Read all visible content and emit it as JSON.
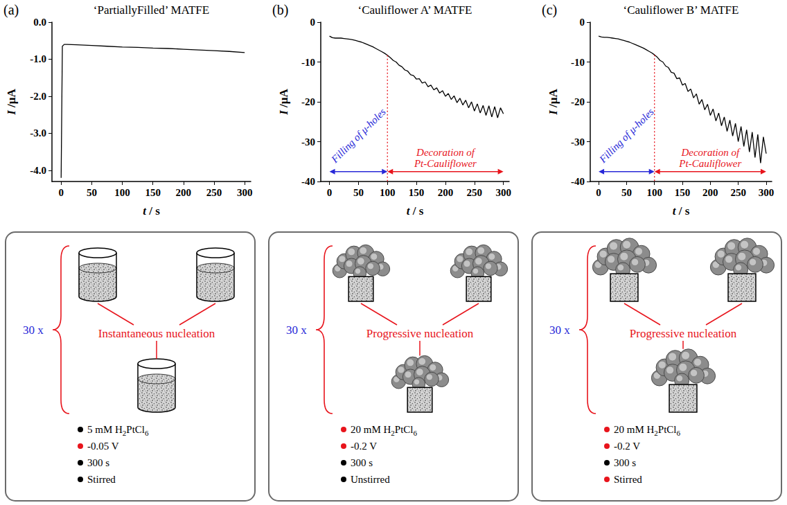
{
  "chart_data": [
    {
      "type": "line",
      "panel": "(a)",
      "title": "‘PartiallyFilled’ MATFE",
      "xlabel": "t / s",
      "ylabel": "I /μA",
      "color": "#000000",
      "grid": false,
      "x": [
        0,
        2,
        5,
        10,
        25,
        50,
        75,
        100,
        125,
        150,
        175,
        200,
        225,
        250,
        275,
        300
      ],
      "values": [
        -4.2,
        -0.65,
        -0.6,
        -0.6,
        -0.61,
        -0.63,
        -0.65,
        -0.67,
        -0.68,
        -0.7,
        -0.71,
        -0.73,
        -0.75,
        -0.77,
        -0.79,
        -0.82
      ],
      "xlim": [
        -15,
        310
      ],
      "xticks": [
        0,
        50,
        100,
        150,
        200,
        250,
        300
      ],
      "ylim": [
        -4.3,
        0
      ],
      "yticks": [
        {
          "value": 0,
          "label": "0.0"
        },
        {
          "value": -1,
          "label": "-1.0"
        },
        {
          "value": -2,
          "label": "-2.0"
        },
        {
          "value": -3,
          "label": "-3.0"
        },
        {
          "value": -4,
          "label": "-4.0"
        }
      ]
    },
    {
      "type": "line",
      "panel": "(b)",
      "title": "‘Cauliflower A’ MATFE",
      "xlabel": "t / s",
      "ylabel": "I /μA",
      "color": "#000000",
      "grid": false,
      "x": [
        0,
        5,
        10,
        15,
        20,
        25,
        30,
        35,
        40,
        45,
        50,
        55,
        60,
        65,
        70,
        75,
        80,
        85,
        90,
        95,
        100,
        105,
        110,
        115,
        120,
        125,
        130,
        135,
        140,
        145,
        150,
        155,
        160,
        165,
        170,
        175,
        180,
        185,
        190,
        195,
        200,
        205,
        210,
        215,
        220,
        225,
        230,
        235,
        240,
        245,
        250,
        255,
        260,
        265,
        270,
        275,
        280,
        285,
        290,
        295,
        300
      ],
      "values": [
        -3.5,
        -3.9,
        -4.0,
        -4.0,
        -4.0,
        -4.1,
        -4.2,
        -4.3,
        -4.4,
        -4.6,
        -4.8,
        -5.0,
        -5.3,
        -5.6,
        -5.9,
        -6.2,
        -6.6,
        -7.0,
        -7.4,
        -7.8,
        -8.3,
        -8.9,
        -9.6,
        -10.0,
        -10.8,
        -11.2,
        -12.0,
        -12.3,
        -13.2,
        -13.4,
        -14.3,
        -14.2,
        -15.3,
        -15.0,
        -16.2,
        -15.8,
        -17.0,
        -16.5,
        -17.8,
        -17.2,
        -18.6,
        -17.9,
        -19.4,
        -18.5,
        -20.2,
        -19.1,
        -20.8,
        -19.6,
        -21.5,
        -20.0,
        -22.3,
        -20.5,
        -22.8,
        -20.9,
        -23.4,
        -21.0,
        -23.8,
        -21.2,
        -24.0,
        -21.5,
        -23.0
      ],
      "xlim": [
        -15,
        310
      ],
      "xticks": [
        0,
        50,
        100,
        150,
        200,
        250,
        300
      ],
      "ylim": [
        -40,
        0
      ],
      "yticks": [
        0,
        -10,
        -20,
        -30,
        -40
      ],
      "annotations": [
        {
          "text": "Filling of μ-holes",
          "start": 0,
          "end": 100,
          "y": -37.5,
          "color": "#2828d8"
        },
        {
          "text": "Decoration of Pt-Cauliflower",
          "start": 100,
          "end": 300,
          "y": -37.5,
          "color": "#e8141c"
        }
      ]
    },
    {
      "type": "line",
      "panel": "(c)",
      "title": "‘Cauliflower B’ MATFE",
      "xlabel": "t / s",
      "ylabel": "I /μA",
      "color": "#000000",
      "grid": false,
      "x": [
        0,
        5,
        10,
        15,
        20,
        25,
        30,
        35,
        40,
        45,
        50,
        55,
        60,
        65,
        70,
        75,
        80,
        85,
        90,
        95,
        100,
        105,
        110,
        115,
        120,
        125,
        130,
        135,
        140,
        145,
        150,
        155,
        160,
        165,
        170,
        175,
        180,
        185,
        190,
        195,
        200,
        205,
        210,
        215,
        220,
        225,
        230,
        235,
        240,
        245,
        250,
        255,
        260,
        265,
        270,
        275,
        280,
        285,
        290,
        295,
        300
      ],
      "values": [
        -3.5,
        -3.7,
        -3.8,
        -3.8,
        -3.9,
        -4.0,
        -4.1,
        -4.2,
        -4.4,
        -4.6,
        -4.8,
        -5.0,
        -5.3,
        -5.6,
        -5.9,
        -6.2,
        -6.5,
        -6.9,
        -7.3,
        -7.7,
        -8.2,
        -8.8,
        -9.6,
        -10.0,
        -11.0,
        -11.4,
        -12.6,
        -12.8,
        -14.2,
        -14.0,
        -15.8,
        -15.4,
        -17.4,
        -16.8,
        -19.0,
        -18.0,
        -20.6,
        -19.4,
        -22.0,
        -20.6,
        -23.4,
        -21.8,
        -24.8,
        -22.8,
        -26.0,
        -23.8,
        -27.4,
        -24.6,
        -28.6,
        -25.4,
        -30.0,
        -26.2,
        -31.2,
        -27.0,
        -32.6,
        -27.6,
        -34.0,
        -28.2,
        -35.4,
        -28.8,
        -33.0
      ],
      "xlim": [
        -15,
        310
      ],
      "xticks": [
        0,
        50,
        100,
        150,
        200,
        250,
        300
      ],
      "ylim": [
        -40,
        0
      ],
      "yticks": [
        0,
        -10,
        -20,
        -30,
        -40
      ],
      "annotations": [
        {
          "text": "Filling of μ-holes",
          "start": 0,
          "end": 100,
          "y": -37.5,
          "color": "#2828d8"
        },
        {
          "text": "Decoration of Pt-Cauliflower",
          "start": 100,
          "end": 300,
          "y": -37.5,
          "color": "#e8141c"
        }
      ]
    }
  ],
  "schematics": [
    {
      "multiplier": "30 x",
      "nucleation": "Instantaneous nucleation",
      "conditions": [
        {
          "text": "5 mM H2PtCl6",
          "color": "#000000"
        },
        {
          "text": "-0.05 V",
          "color": "#e8141c"
        },
        {
          "text": "300 s",
          "color": "#000000"
        },
        {
          "text": "Stirred",
          "color": "#000000"
        }
      ]
    },
    {
      "multiplier": "30 x",
      "nucleation": "Progressive nucleation",
      "conditions": [
        {
          "text": "20 mM H2PtCl6",
          "color": "#e8141c"
        },
        {
          "text": "-0.2 V",
          "color": "#e8141c"
        },
        {
          "text": "300 s",
          "color": "#000000"
        },
        {
          "text": "Unstirred",
          "color": "#000000"
        }
      ]
    },
    {
      "multiplier": "30 x",
      "nucleation": "Progressive nucleation",
      "conditions": [
        {
          "text": "20 mM H2PtCl6",
          "color": "#e8141c"
        },
        {
          "text": "-0.2 V",
          "color": "#e8141c"
        },
        {
          "text": "300 s",
          "color": "#000000"
        },
        {
          "text": "Stirred",
          "color": "#e8141c"
        }
      ]
    }
  ]
}
